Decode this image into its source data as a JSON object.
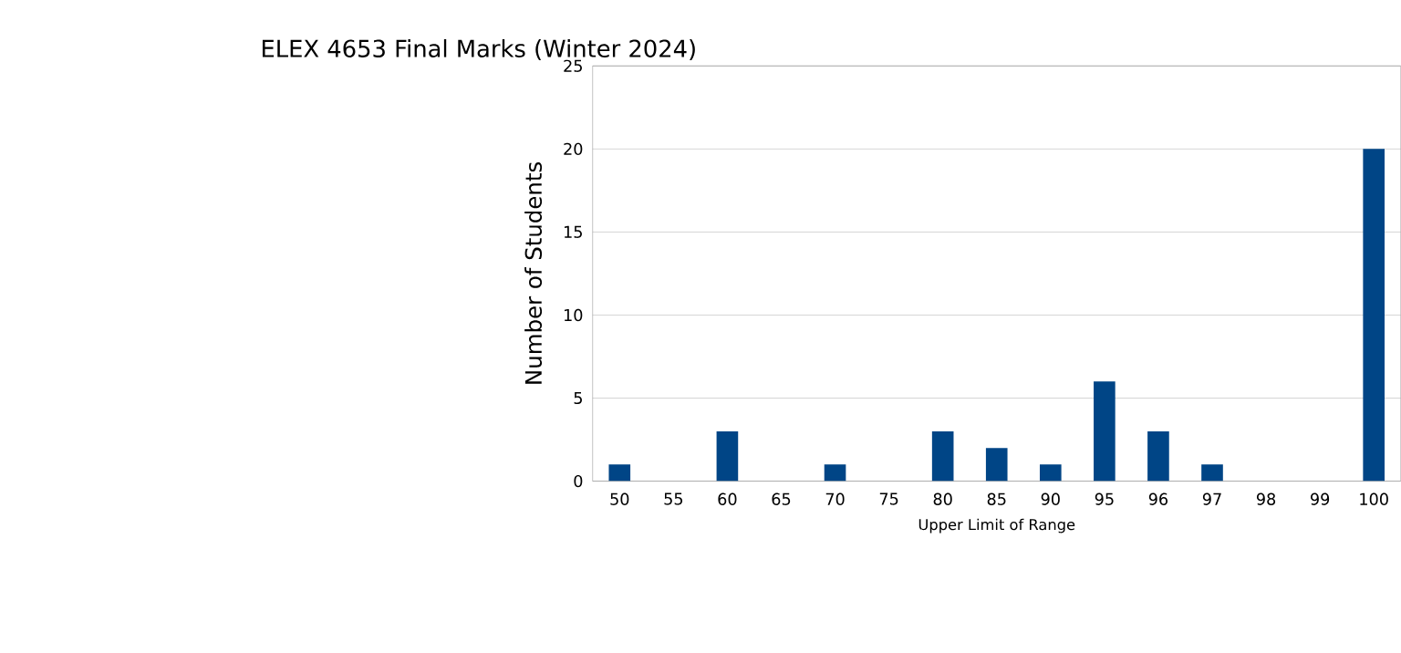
{
  "chart_data": {
    "type": "bar",
    "title": "ELEX 4653 Final Marks (Winter 2024)",
    "xlabel": "Upper Limit of Range",
    "ylabel": "Number of Students",
    "categories": [
      "50",
      "55",
      "60",
      "65",
      "70",
      "75",
      "80",
      "85",
      "90",
      "95",
      "96",
      "97",
      "98",
      "99",
      "100"
    ],
    "values": [
      1,
      0,
      3,
      0,
      1,
      0,
      3,
      2,
      1,
      6,
      3,
      1,
      0,
      0,
      20
    ],
    "color": "#004586",
    "ylim": [
      0,
      25
    ],
    "yticks": [
      0,
      5,
      10,
      15,
      20,
      25
    ],
    "grid": "y"
  }
}
